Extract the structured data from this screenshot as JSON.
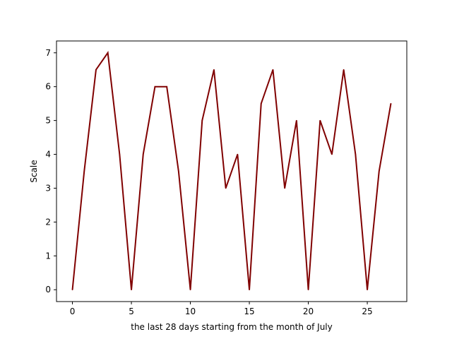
{
  "chart_data": {
    "type": "line",
    "title": "",
    "xlabel": "the last 28 days starting from the month of July",
    "ylabel": "Scale",
    "xlim": [
      -1.35,
      28.35
    ],
    "ylim": [
      -0.35,
      7.35
    ],
    "xticks": [
      0,
      5,
      10,
      15,
      20,
      25
    ],
    "yticks": [
      0,
      1,
      2,
      3,
      4,
      5,
      6,
      7
    ],
    "grid": false,
    "legend": "none",
    "series": [
      {
        "color": "#800000",
        "x": [
          0,
          1,
          2,
          3,
          4,
          5,
          6,
          7,
          8,
          9,
          10,
          11,
          12,
          13,
          14,
          15,
          16,
          17,
          18,
          19,
          20,
          21,
          22,
          23,
          24,
          25,
          26,
          27
        ],
        "values": [
          0,
          3.5,
          6.5,
          7,
          4,
          0,
          4,
          6,
          6,
          3.5,
          0,
          5,
          6.5,
          3,
          4,
          0,
          5.5,
          6.5,
          3,
          5,
          0,
          5,
          4,
          6.5,
          4,
          0,
          3.5,
          5.5
        ]
      }
    ]
  }
}
